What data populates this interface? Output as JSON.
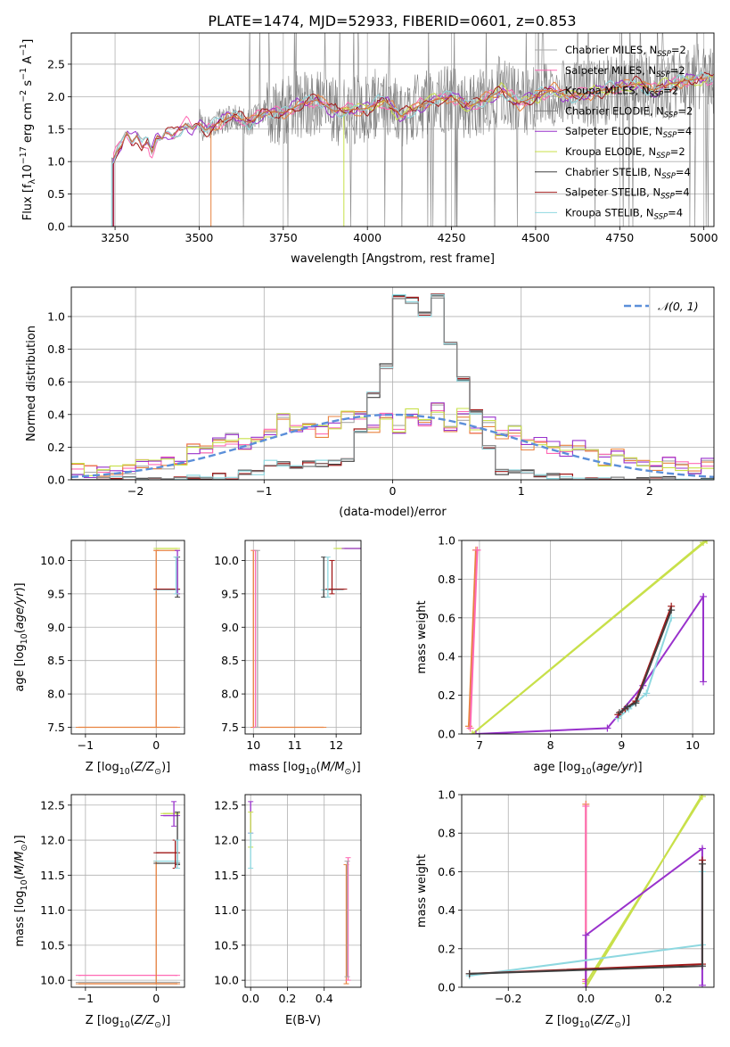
{
  "figure_title": "PLATE=1474, MJD=52933, FIBERID=0601, z=0.853",
  "series_styles": [
    {
      "name": "Chabrier MILES",
      "nssp": "=2",
      "color": "#a9a9a9"
    },
    {
      "name": "Salpeter MILES",
      "nssp": "=2",
      "color": "#ff69b4"
    },
    {
      "name": "Kroupa MILES",
      "nssp": "=2",
      "color": "#e8823f"
    },
    {
      "name": "Chabrier ELODIE",
      "nssp": "=2",
      "color": "#808080"
    },
    {
      "name": "Salpeter ELODIE",
      "nssp": "=4",
      "color": "#9932cc"
    },
    {
      "name": "Kroupa ELODIE",
      "nssp": "=2",
      "color": "#c8e04a"
    },
    {
      "name": "Chabrier STELIB",
      "nssp": "=4",
      "color": "#404040"
    },
    {
      "name": "Salpeter STELIB",
      "nssp": "=4",
      "color": "#a01818"
    },
    {
      "name": "Kroupa STELIB",
      "nssp": "=4",
      "color": "#8ed8e0"
    }
  ],
  "chart_data": [
    {
      "id": "spectrum",
      "type": "line",
      "xlabel": "wavelength [Angstrom, rest frame]",
      "ylabel_parts": {
        "pre": "Flux [f",
        "sub1": "λ",
        "mid": "10",
        "sup1": "−17",
        "tail": " erg cm",
        "sup2": "−2",
        "tail2": " s",
        "sup3": "−1",
        "tail3": " A",
        "sup4": "−1",
        "end": "]"
      },
      "xlim": [
        3120,
        5030
      ],
      "ylim": [
        0,
        2.98
      ],
      "xticks": [
        3250,
        3500,
        3750,
        4000,
        4250,
        4500,
        4750,
        5000
      ],
      "yticks": [
        0.0,
        0.5,
        1.0,
        1.5,
        2.0,
        2.5
      ],
      "legend_position": "top-right",
      "continuum": {
        "x": [
          3245,
          3255,
          3270,
          3285,
          3300,
          3315,
          3330,
          3345,
          3360,
          3375,
          3390,
          3400,
          3420,
          3440,
          3460,
          3480,
          3500,
          3520,
          3540,
          3560,
          3580,
          3600,
          3650,
          3700,
          3750,
          3800,
          3850,
          3900,
          3950,
          4000,
          4050,
          4100,
          4150,
          4200,
          4250,
          4300,
          4350,
          4400,
          4450,
          4500,
          4550,
          4600,
          4650,
          4700,
          4750,
          4800,
          4850,
          4900,
          4950,
          5000
        ],
        "y": [
          1.05,
          1.15,
          1.25,
          1.45,
          1.3,
          1.4,
          1.22,
          1.3,
          1.15,
          1.4,
          1.35,
          1.45,
          1.4,
          1.5,
          1.58,
          1.5,
          1.6,
          1.48,
          1.55,
          1.6,
          1.65,
          1.7,
          1.6,
          1.78,
          1.75,
          1.88,
          1.95,
          1.78,
          1.8,
          1.82,
          1.95,
          1.7,
          1.85,
          1.95,
          2.0,
          1.85,
          1.95,
          2.1,
          1.9,
          2.0,
          2.1,
          2.0,
          2.05,
          2.1,
          2.15,
          2.2,
          2.1,
          2.2,
          2.25,
          2.28
        ]
      },
      "data_start_x": 3240
    },
    {
      "id": "residuals",
      "type": "area",
      "xlabel": "(data-model)/error",
      "ylabel": "Normed distribution",
      "xlim": [
        -2.5,
        2.5
      ],
      "ylim": [
        0,
        1.18
      ],
      "xticks": [
        -2,
        -1,
        0,
        1,
        2
      ],
      "yticks": [
        0.0,
        0.2,
        0.4,
        0.6,
        0.8,
        1.0
      ],
      "legend": [
        {
          "label": "𝒩(0, 1)",
          "color": "#5b8fd9"
        }
      ],
      "legend_position": "top-right",
      "bin_edges": [
        -2.5,
        -2.4,
        -2.3,
        -2.2,
        -2.1,
        -2.0,
        -1.9,
        -1.8,
        -1.7,
        -1.6,
        -1.5,
        -1.4,
        -1.3,
        -1.2,
        -1.1,
        -1.0,
        -0.9,
        -0.8,
        -0.7,
        -0.6,
        -0.5,
        -0.4,
        -0.3,
        -0.2,
        -0.1,
        0.0,
        0.1,
        0.2,
        0.3,
        0.4,
        0.5,
        0.6,
        0.7,
        0.8,
        0.9,
        1.0,
        1.1,
        1.2,
        1.3,
        1.4,
        1.5,
        1.6,
        1.7,
        1.8,
        1.9,
        2.0,
        2.1,
        2.2,
        2.3,
        2.4,
        2.5
      ],
      "narrow_hist": [
        0.0,
        0.0,
        0.0,
        0.0,
        0.0,
        0.0,
        0.0,
        0.0,
        0.02,
        0.02,
        0.0,
        0.02,
        0.0,
        0.05,
        0.05,
        0.1,
        0.1,
        0.08,
        0.1,
        0.1,
        0.1,
        0.12,
        0.3,
        0.52,
        0.7,
        1.12,
        1.1,
        1.02,
        1.12,
        0.85,
        0.62,
        0.42,
        0.2,
        0.05,
        0.05,
        0.05,
        0.02,
        0.02,
        0.02,
        0.0,
        0.0,
        0.0,
        0.0,
        0.0,
        0.0,
        0.0,
        0.0,
        0.0,
        0.0,
        0.0
      ],
      "wide_hist": [
        0.07,
        0.05,
        0.06,
        0.05,
        0.06,
        0.1,
        0.09,
        0.1,
        0.13,
        0.18,
        0.2,
        0.22,
        0.25,
        0.22,
        0.27,
        0.3,
        0.37,
        0.32,
        0.35,
        0.3,
        0.35,
        0.38,
        0.4,
        0.3,
        0.38,
        0.32,
        0.4,
        0.35,
        0.45,
        0.3,
        0.4,
        0.28,
        0.35,
        0.27,
        0.3,
        0.22,
        0.25,
        0.2,
        0.18,
        0.22,
        0.18,
        0.12,
        0.15,
        0.12,
        0.1,
        0.09,
        0.1,
        0.08,
        0.07,
        0.1
      ],
      "gaussian": {
        "mean": 0,
        "sigma": 1
      }
    },
    {
      "id": "age-vs-Z",
      "type": "scatter",
      "xlabel_parts": {
        "pre": "Z [log",
        "sub": "10",
        "mid": "(",
        "it": "Z/Z",
        "sub2": "⊙",
        "end": ")]"
      },
      "ylabel_parts": {
        "pre": "age  [log",
        "sub": "10",
        "mid": "(",
        "it": "age/yr",
        "end": ")]"
      },
      "xlim": [
        -1.2,
        0.4
      ],
      "ylim": [
        7.4,
        10.3
      ],
      "xticks": [
        -1,
        0
      ],
      "yticks": [
        7.5,
        8.0,
        8.5,
        9.0,
        9.5,
        10.0
      ],
      "segments": [
        {
          "series": 2,
          "x": [
            -1.1,
            0.3
          ],
          "y": [
            7.5,
            7.5
          ]
        },
        {
          "series": 2,
          "x": [
            0.0,
            0.0
          ],
          "y": [
            7.5,
            10.15
          ]
        },
        {
          "series": 2,
          "x": [
            0.0,
            0.3
          ],
          "y": [
            10.15,
            10.15
          ]
        },
        {
          "series": 5,
          "x": [
            0.0,
            0.3
          ],
          "y": [
            10.18,
            10.18
          ]
        },
        {
          "series": 8,
          "x": [
            0.0,
            0.3
          ],
          "y": [
            9.56,
            9.56
          ]
        },
        {
          "series": 7,
          "x": [
            0.0,
            0.3
          ],
          "y": [
            9.57,
            9.57
          ]
        },
        {
          "series": 6,
          "x": [
            0.3,
            0.3
          ],
          "y": [
            9.45,
            10.05
          ]
        },
        {
          "series": 4,
          "x": [
            0.3,
            0.3
          ],
          "y": [
            9.5,
            10.15
          ]
        },
        {
          "series": 8,
          "x": [
            0.28,
            0.28
          ],
          "y": [
            9.5,
            10.05
          ]
        }
      ]
    },
    {
      "id": "age-vs-mass",
      "type": "scatter",
      "xlabel_parts": {
        "pre": "mass [log",
        "sub": "10",
        "mid": "(",
        "it": "M/M",
        "sub2": "⊙",
        "end": ")]"
      },
      "xlim": [
        9.8,
        12.6
      ],
      "ylim": [
        7.4,
        10.3
      ],
      "xticks": [
        10,
        11,
        12
      ],
      "yticks": [
        7.5,
        8.0,
        8.5,
        9.0,
        9.5,
        10.0
      ],
      "segments": [
        {
          "series": 2,
          "x": [
            10.0,
            11.7
          ],
          "y": [
            7.5,
            7.5
          ]
        },
        {
          "series": 2,
          "x": [
            10.0,
            10.0
          ],
          "y": [
            7.5,
            10.15
          ]
        },
        {
          "series": 1,
          "x": [
            10.05,
            10.05
          ],
          "y": [
            7.5,
            10.15
          ]
        },
        {
          "series": 0,
          "x": [
            10.1,
            10.1
          ],
          "y": [
            7.5,
            10.15
          ]
        },
        {
          "series": 5,
          "x": [
            12.0,
            12.6
          ],
          "y": [
            10.18,
            10.18
          ]
        },
        {
          "series": 4,
          "x": [
            12.2,
            12.6
          ],
          "y": [
            10.18,
            10.18
          ]
        },
        {
          "series": 8,
          "x": [
            11.7,
            12.1
          ],
          "y": [
            9.56,
            9.56
          ]
        },
        {
          "series": 7,
          "x": [
            11.8,
            12.2
          ],
          "y": [
            9.57,
            9.57
          ]
        },
        {
          "series": 6,
          "x": [
            11.7,
            11.7
          ],
          "y": [
            9.45,
            10.05
          ]
        },
        {
          "series": 8,
          "x": [
            11.8,
            11.8
          ],
          "y": [
            9.45,
            10.05
          ]
        },
        {
          "series": 7,
          "x": [
            11.9,
            11.9
          ],
          "y": [
            9.5,
            10.0
          ]
        }
      ]
    },
    {
      "id": "massweight-vs-age",
      "type": "line",
      "xlabel_parts": {
        "pre": "age  [log",
        "sub": "10",
        "mid": "(",
        "it": "age/yr",
        "end": ")]"
      },
      "ylabel": "mass weight",
      "xlim": [
        6.75,
        10.3
      ],
      "ylim": [
        0,
        1.0
      ],
      "xticks": [
        7,
        8,
        9,
        10
      ],
      "yticks": [
        0.0,
        0.2,
        0.4,
        0.6,
        0.8,
        1.0
      ],
      "lines": [
        {
          "series": 2,
          "x": [
            6.85,
            6.95
          ],
          "y": [
            0.04,
            0.95
          ]
        },
        {
          "series": 1,
          "x": [
            6.87,
            6.97
          ],
          "y": [
            0.03,
            0.95
          ]
        },
        {
          "series": 5,
          "x": [
            6.9,
            10.2
          ],
          "y": [
            0.0,
            1.0
          ]
        },
        {
          "series": 5,
          "x": [
            6.9,
            10.15
          ],
          "y": [
            0.0,
            0.99
          ]
        },
        {
          "series": 4,
          "x": [
            6.95,
            8.8,
            9.3,
            10.15,
            10.15
          ],
          "y": [
            0.0,
            0.03,
            0.25,
            0.71,
            0.27
          ]
        },
        {
          "series": 8,
          "x": [
            8.95,
            9.1,
            9.2,
            9.35,
            9.7
          ],
          "y": [
            0.08,
            0.13,
            0.16,
            0.21,
            0.6
          ]
        },
        {
          "series": 7,
          "x": [
            8.95,
            9.05,
            9.2,
            9.7
          ],
          "y": [
            0.1,
            0.13,
            0.17,
            0.66
          ]
        },
        {
          "series": 6,
          "x": [
            8.97,
            9.08,
            9.2,
            9.7
          ],
          "y": [
            0.11,
            0.14,
            0.16,
            0.64
          ]
        }
      ]
    },
    {
      "id": "mass-vs-Z",
      "type": "scatter",
      "xlabel_parts": {
        "pre": "Z [log",
        "sub": "10",
        "mid": "(",
        "it": "Z/Z",
        "sub2": "⊙",
        "end": ")]"
      },
      "ylabel_parts": {
        "pre": "mass [log",
        "sub": "10",
        "mid": "(",
        "it": "M/M",
        "sub2": "⊙",
        "end": ")]"
      },
      "xlim": [
        -1.2,
        0.4
      ],
      "ylim": [
        9.9,
        12.65
      ],
      "xticks": [
        -1,
        0
      ],
      "yticks": [
        10.0,
        10.5,
        11.0,
        11.5,
        12.0,
        12.5
      ],
      "segments": [
        {
          "series": 1,
          "x": [
            -1.1,
            0.3
          ],
          "y": [
            10.07,
            10.07
          ]
        },
        {
          "series": 2,
          "x": [
            -1.1,
            0.3
          ],
          "y": [
            9.95,
            9.95
          ]
        },
        {
          "series": 0,
          "x": [
            -1.1,
            0.3
          ],
          "y": [
            9.97,
            9.97
          ]
        },
        {
          "series": 2,
          "x": [
            0.0,
            0.0
          ],
          "y": [
            9.95,
            11.7
          ]
        },
        {
          "series": 7,
          "x": [
            0.0,
            0.3
          ],
          "y": [
            11.82,
            11.82
          ]
        },
        {
          "series": 8,
          "x": [
            0.0,
            0.3
          ],
          "y": [
            11.7,
            11.7
          ]
        },
        {
          "series": 6,
          "x": [
            0.0,
            0.3
          ],
          "y": [
            11.67,
            11.67
          ]
        },
        {
          "series": 5,
          "x": [
            0.1,
            0.3
          ],
          "y": [
            12.38,
            12.38
          ]
        },
        {
          "series": 4,
          "x": [
            0.1,
            0.3
          ],
          "y": [
            12.35,
            12.35
          ]
        },
        {
          "series": 4,
          "x": [
            0.25,
            0.25
          ],
          "y": [
            12.2,
            12.55
          ]
        },
        {
          "series": 6,
          "x": [
            0.3,
            0.3
          ],
          "y": [
            11.65,
            12.4
          ]
        },
        {
          "series": 7,
          "x": [
            0.27,
            0.27
          ],
          "y": [
            11.6,
            12.0
          ]
        },
        {
          "series": 8,
          "x": [
            0.3,
            0.3
          ],
          "y": [
            11.6,
            12.0
          ]
        }
      ]
    },
    {
      "id": "mass-vs-EBV",
      "type": "scatter",
      "xlabel": "E(B-V)",
      "xlim": [
        -0.03,
        0.6
      ],
      "ylim": [
        9.9,
        12.65
      ],
      "xticks": [
        0.0,
        0.2,
        0.4
      ],
      "xtick_labels": [
        "0.0",
        "0.2",
        "0.4"
      ],
      "yticks": [
        10.0,
        10.5,
        11.0,
        11.5,
        12.0,
        12.5
      ],
      "segments": [
        {
          "series": 4,
          "x": [
            0.0,
            0.0
          ],
          "y": [
            12.1,
            12.55
          ]
        },
        {
          "series": 5,
          "x": [
            0.0,
            0.0
          ],
          "y": [
            11.9,
            12.4
          ]
        },
        {
          "series": 8,
          "x": [
            0.0,
            0.0
          ],
          "y": [
            11.6,
            12.1
          ]
        },
        {
          "series": 2,
          "x": [
            0.52,
            0.52
          ],
          "y": [
            9.95,
            11.65
          ]
        },
        {
          "series": 1,
          "x": [
            0.53,
            0.53
          ],
          "y": [
            10.0,
            11.75
          ]
        },
        {
          "series": 0,
          "x": [
            0.525,
            0.525
          ],
          "y": [
            10.05,
            11.7
          ]
        }
      ]
    },
    {
      "id": "massweight-vs-Z",
      "type": "line",
      "xlabel_parts": {
        "pre": "Z [log",
        "sub": "10",
        "mid": "(",
        "it": "Z/Z",
        "sub2": "⊙",
        "end": ")]"
      },
      "ylabel": "mass weight",
      "xlim": [
        -0.32,
        0.33
      ],
      "ylim": [
        0,
        1.0
      ],
      "xticks": [
        -0.2,
        0.0,
        0.2
      ],
      "xtick_labels": [
        "−0.2",
        "0.0",
        "0.2"
      ],
      "yticks": [
        0.0,
        0.2,
        0.4,
        0.6,
        0.8,
        1.0
      ],
      "lines": [
        {
          "series": 2,
          "x": [
            0.0,
            0.0
          ],
          "y": [
            0.04,
            0.95
          ]
        },
        {
          "series": 1,
          "x": [
            0.0,
            0.0
          ],
          "y": [
            0.03,
            0.94
          ]
        },
        {
          "series": 5,
          "x": [
            0.0,
            0.3
          ],
          "y": [
            0.0,
            1.0
          ]
        },
        {
          "series": 5,
          "x": [
            0.0,
            0.3
          ],
          "y": [
            0.02,
            0.99
          ]
        },
        {
          "series": 4,
          "x": [
            0.0,
            0.0,
            0.3,
            0.3
          ],
          "y": [
            0.0,
            0.27,
            0.72,
            0.01
          ]
        },
        {
          "series": 8,
          "x": [
            -0.3,
            0.3,
            0.3
          ],
          "y": [
            0.06,
            0.22,
            0.6
          ]
        },
        {
          "series": 7,
          "x": [
            -0.3,
            0.3,
            0.3
          ],
          "y": [
            0.07,
            0.12,
            0.66
          ]
        },
        {
          "series": 6,
          "x": [
            -0.3,
            0.3,
            0.3
          ],
          "y": [
            0.07,
            0.11,
            0.64
          ]
        }
      ]
    }
  ]
}
